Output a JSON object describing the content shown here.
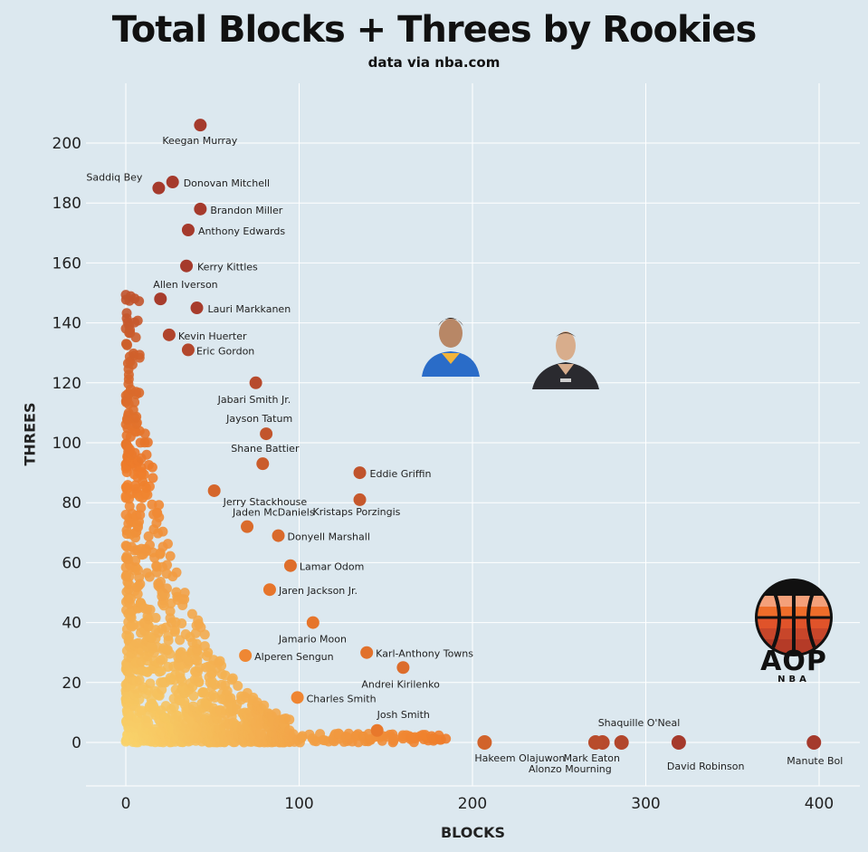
{
  "header": {
    "title": "Total Blocks + Threes by Rookies",
    "subtitle": "data via nba.com"
  },
  "logo": {
    "main": "AOP",
    "sub": "NBA"
  },
  "chart_data": {
    "type": "scatter",
    "title": "Total Blocks + Threes by Rookies",
    "subtitle": "data via nba.com",
    "xlabel": "BLOCKS",
    "ylabel": "THREES",
    "xlim": [
      -20,
      420
    ],
    "ylim": [
      -15,
      220
    ],
    "xticks": [
      0,
      100,
      200,
      300,
      400
    ],
    "yticks": [
      0,
      20,
      40,
      60,
      80,
      100,
      120,
      140,
      160,
      180,
      200
    ],
    "grid": true,
    "color_scale": {
      "low": "#f8d36b",
      "mid": "#ee7d2b",
      "high": "#a53a2c"
    },
    "labeled_points": [
      {
        "name": "Keegan Murray",
        "x": 43,
        "y": 206
      },
      {
        "name": "Donovan Mitchell",
        "x": 27,
        "y": 187
      },
      {
        "name": "Saddiq Bey",
        "x": 19,
        "y": 185
      },
      {
        "name": "Brandon Miller",
        "x": 43,
        "y": 178
      },
      {
        "name": "Anthony Edwards",
        "x": 36,
        "y": 171
      },
      {
        "name": "Kerry Kittles",
        "x": 35,
        "y": 159
      },
      {
        "name": "Allen Iverson",
        "x": 20,
        "y": 148
      },
      {
        "name": "Lauri Markkanen",
        "x": 41,
        "y": 145
      },
      {
        "name": "Kevin Huerter",
        "x": 25,
        "y": 136
      },
      {
        "name": "Eric Gordon",
        "x": 36,
        "y": 131
      },
      {
        "name": "Jabari Smith Jr.",
        "x": 75,
        "y": 120
      },
      {
        "name": "Jayson Tatum",
        "x": 81,
        "y": 103
      },
      {
        "name": "Shane Battier",
        "x": 79,
        "y": 93
      },
      {
        "name": "Jerry Stackhouse",
        "x": 51,
        "y": 84
      },
      {
        "name": "Eddie Griffin",
        "x": 135,
        "y": 90
      },
      {
        "name": "Jaden McDaniels",
        "x": 70,
        "y": 72
      },
      {
        "name": "Kristaps Porzingis",
        "x": 135,
        "y": 81
      },
      {
        "name": "Donyell Marshall",
        "x": 88,
        "y": 69
      },
      {
        "name": "Lamar Odom",
        "x": 95,
        "y": 59
      },
      {
        "name": "Jaren Jackson Jr.",
        "x": 83,
        "y": 51
      },
      {
        "name": "Jamario Moon",
        "x": 108,
        "y": 40
      },
      {
        "name": "Alperen Sengun",
        "x": 69,
        "y": 29
      },
      {
        "name": "Karl-Anthony Towns",
        "x": 139,
        "y": 30
      },
      {
        "name": "Andrei Kirilenko",
        "x": 160,
        "y": 25
      },
      {
        "name": "Charles Smith",
        "x": 99,
        "y": 15
      },
      {
        "name": "Josh Smith",
        "x": 145,
        "y": 4
      },
      {
        "name": "Shaquille O'Neal",
        "x": 286,
        "y": 0
      },
      {
        "name": "Hakeem Olajuwon",
        "x": 207,
        "y": 0
      },
      {
        "name": "Mark Eaton",
        "x": 275,
        "y": 0
      },
      {
        "name": "Alonzo Mourning",
        "x": 271,
        "y": 0
      },
      {
        "name": "David Robinson",
        "x": 319,
        "y": 0
      },
      {
        "name": "Manute Bol",
        "x": 397,
        "y": 0
      }
    ],
    "annotations": [
      {
        "type": "player-photo",
        "x": 186,
        "y": 127,
        "jersey": "#2a6cc8"
      },
      {
        "type": "player-photo",
        "x": 249,
        "y": 122,
        "jersey": "#2a2a2f"
      }
    ]
  }
}
